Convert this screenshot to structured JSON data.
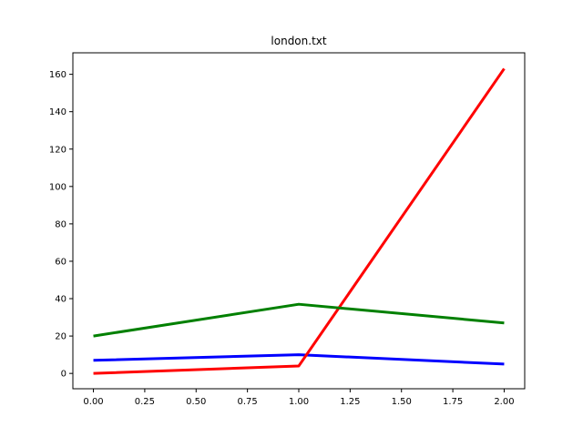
{
  "chart_data": {
    "type": "line",
    "title": "london.txt",
    "xlabel": "",
    "ylabel": "",
    "x": [
      0,
      1,
      2
    ],
    "xlim": [
      -0.1,
      2.1
    ],
    "ylim": [
      -8.2,
      171.5
    ],
    "xticks": [
      0,
      0.25,
      0.5,
      0.75,
      1.0,
      1.25,
      1.5,
      1.75,
      2.0
    ],
    "xtick_labels": [
      "0.00",
      "0.25",
      "0.50",
      "0.75",
      "1.00",
      "1.25",
      "1.50",
      "1.75",
      "2.00"
    ],
    "yticks": [
      0,
      20,
      40,
      60,
      80,
      100,
      120,
      140,
      160
    ],
    "ytick_labels": [
      "0",
      "20",
      "40",
      "60",
      "80",
      "100",
      "120",
      "140",
      "160"
    ],
    "grid": false,
    "series": [
      {
        "color": "#0000ff",
        "values": [
          7,
          10,
          5
        ]
      },
      {
        "color": "#ff0000",
        "values": [
          0,
          4,
          163
        ]
      },
      {
        "color": "#008000",
        "values": [
          20,
          37,
          27
        ]
      }
    ]
  }
}
